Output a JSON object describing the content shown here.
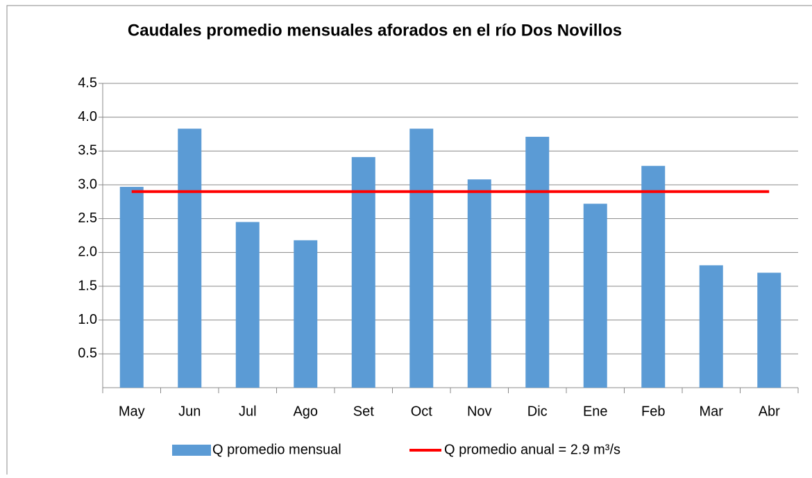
{
  "chart_data": {
    "type": "bar",
    "title": "Caudales promedio mensuales aforados en el río Dos Novillos",
    "categories": [
      "May",
      "Jun",
      "Jul",
      "Ago",
      "Set",
      "Oct",
      "Nov",
      "Dic",
      "Ene",
      "Feb",
      "Mar",
      "Abr"
    ],
    "series": [
      {
        "name": "Q promedio mensual",
        "type": "bar",
        "color": "#5b9bd5",
        "values": [
          2.97,
          3.83,
          2.45,
          2.18,
          3.41,
          3.83,
          3.08,
          3.71,
          2.72,
          3.28,
          1.81,
          1.7
        ]
      },
      {
        "name": "Q promedio anual = 2.9 m³/s",
        "type": "line",
        "color": "#ff0000",
        "values": [
          2.9,
          2.9,
          2.9,
          2.9,
          2.9,
          2.9,
          2.9,
          2.9,
          2.9,
          2.9,
          2.9,
          2.9
        ]
      }
    ],
    "ylim": [
      0,
      4.5
    ],
    "yticks": [
      0.5,
      {
        "value": 1,
        "label": "1.0"
      },
      1.5,
      {
        "value": 2,
        "label": "2.0"
      },
      2.5,
      {
        "value": 3,
        "label": "3.0"
      },
      3.5,
      {
        "value": 4,
        "label": "4.0"
      },
      4.5
    ],
    "grid": true,
    "legend": "bottom"
  }
}
